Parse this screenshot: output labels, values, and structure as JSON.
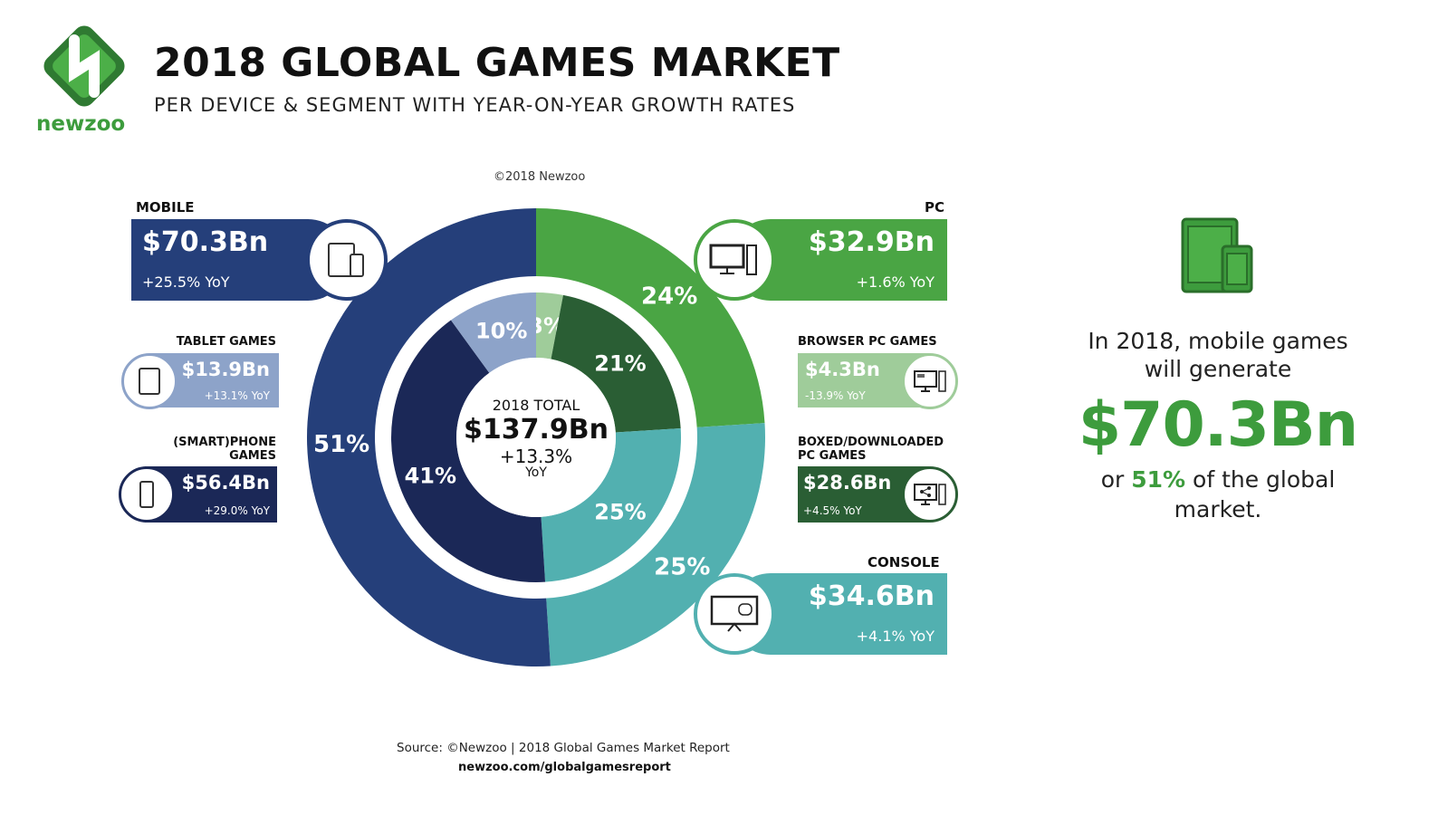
{
  "header": {
    "title": "2018 GLOBAL GAMES MARKET",
    "subtitle": "PER DEVICE & SEGMENT WITH YEAR-ON-YEAR GROWTH RATES",
    "brand": "newzoo",
    "copyright": "©2018 Newzoo"
  },
  "segments": {
    "mobile": {
      "label": "MOBILE",
      "value": "$70.3Bn",
      "yoy": "+25.5% YoY"
    },
    "tablet": {
      "label": "TABLET GAMES",
      "value": "$13.9Bn",
      "yoy": "+13.1% YoY"
    },
    "phone": {
      "label1": "(SMART)PHONE",
      "label2": "GAMES",
      "value": "$56.4Bn",
      "yoy": "+29.0% YoY"
    },
    "pc": {
      "label": "PC",
      "value": "$32.9Bn",
      "yoy": "+1.6% YoY"
    },
    "browser": {
      "label": "BROWSER PC GAMES",
      "value": "$4.3Bn",
      "yoy": "-13.9% YoY"
    },
    "boxed": {
      "label1": "BOXED/DOWNLOADED",
      "label2": "PC GAMES",
      "value": "$28.6Bn",
      "yoy": "+4.5% YoY"
    },
    "console": {
      "label": "CONSOLE",
      "value": "$34.6Bn",
      "yoy": "+4.1% YoY"
    }
  },
  "center": {
    "label": "2018 TOTAL",
    "value": "$137.9Bn",
    "growth": "+13.3%",
    "yoy": "YoY"
  },
  "side_note": {
    "line1": "In 2018, mobile games",
    "line2": "will generate",
    "value": "$70.3Bn",
    "pre": "or ",
    "pct": "51%",
    "post": " of the global",
    "line4": "market."
  },
  "footer": {
    "source": "Source: ©Newzoo | 2018 Global Games Market Report",
    "url": "newzoo.com/globalgamesreport"
  },
  "colors": {
    "mobile": "#253f7a",
    "phone": "#1b2857",
    "tablet": "#8da3c9",
    "pc": "#4aa544",
    "browser": "#9fcc9a",
    "boxed": "#2a5e34",
    "console": "#52b0b0",
    "accent": "#3d9c3d"
  },
  "chart_data": {
    "type": "pie",
    "title": "2018 Global Games Market",
    "outer": {
      "labels": [
        "PC",
        "Console",
        "Mobile"
      ],
      "values": [
        24,
        25,
        51
      ],
      "pct_labels": [
        "24%",
        "25%",
        "51%"
      ],
      "colors": [
        "#4aa544",
        "#52b0b0",
        "#253f7a"
      ]
    },
    "inner": {
      "labels": [
        "Browser PC Games",
        "Boxed/Downloaded PC Games",
        "Console",
        "(Smart)phone Games",
        "Tablet Games"
      ],
      "values": [
        3,
        21,
        25,
        41,
        10
      ],
      "pct_labels": [
        "3%",
        "21%",
        "25%",
        "41%",
        "10%"
      ],
      "colors": [
        "#9fcc9a",
        "#2a5e34",
        "#52b0b0",
        "#1b2857",
        "#8da3c9"
      ]
    }
  }
}
